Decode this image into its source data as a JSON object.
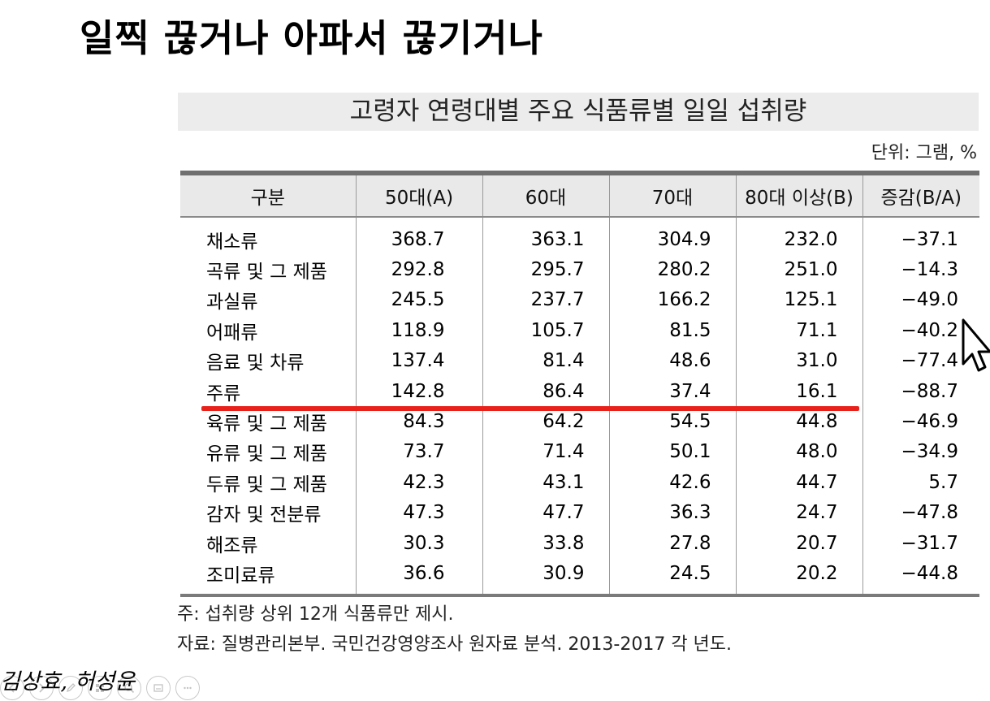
{
  "slide": {
    "title": "일찍 끊거나 아파서 끊기거나"
  },
  "table": {
    "caption": "고령자 연령대별 주요 식품류별 일일 섭취량",
    "unit": "단위: 그램, %",
    "headers": [
      "구분",
      "50대(A)",
      "60대",
      "70대",
      "80대 이상(B)",
      "증감(B/A)"
    ],
    "rows": [
      [
        "채소류",
        "368.7",
        "363.1",
        "304.9",
        "232.0",
        "−37.1"
      ],
      [
        "곡류 및 그 제품",
        "292.8",
        "295.7",
        "280.2",
        "251.0",
        "−14.3"
      ],
      [
        "과실류",
        "245.5",
        "237.7",
        "166.2",
        "125.1",
        "−49.0"
      ],
      [
        "어패류",
        "118.9",
        "105.7",
        "81.5",
        "71.1",
        "−40.2"
      ],
      [
        "음료 및 차류",
        "137.4",
        "81.4",
        "48.6",
        "31.0",
        "−77.4"
      ],
      [
        "주류",
        "142.8",
        "86.4",
        "37.4",
        "16.1",
        "−88.7"
      ],
      [
        "육류 및 그 제품",
        "84.3",
        "64.2",
        "54.5",
        "44.8",
        "−46.9"
      ],
      [
        "유류 및 그 제품",
        "73.7",
        "71.4",
        "50.1",
        "48.0",
        "−34.9"
      ],
      [
        "두류 및 그 제품",
        "42.3",
        "43.1",
        "42.6",
        "44.7",
        "5.7"
      ],
      [
        "감자 및 전분류",
        "47.3",
        "47.7",
        "36.3",
        "24.7",
        "−47.8"
      ],
      [
        "해조류",
        "30.3",
        "33.8",
        "27.8",
        "20.7",
        "−31.7"
      ],
      [
        "조미료류",
        "36.6",
        "30.9",
        "24.5",
        "20.2",
        "−44.8"
      ]
    ]
  },
  "notes": {
    "note1": "주: 섭취량 상위 12개 식품류만 제시.",
    "note2": "자료: 질병관리본부. 국민건강영양조사 원자료 분석. 2013-2017 각 년도."
  },
  "authors": "김상효, 허성윤",
  "highlight": {
    "row": "주류",
    "color": "#e8221b"
  },
  "toolbar": {
    "icons": [
      "prev-arrow-icon",
      "next-arrow-icon",
      "pen-icon",
      "slides-grid-icon",
      "zoom-icon",
      "subtitles-icon",
      "more-icon"
    ]
  }
}
